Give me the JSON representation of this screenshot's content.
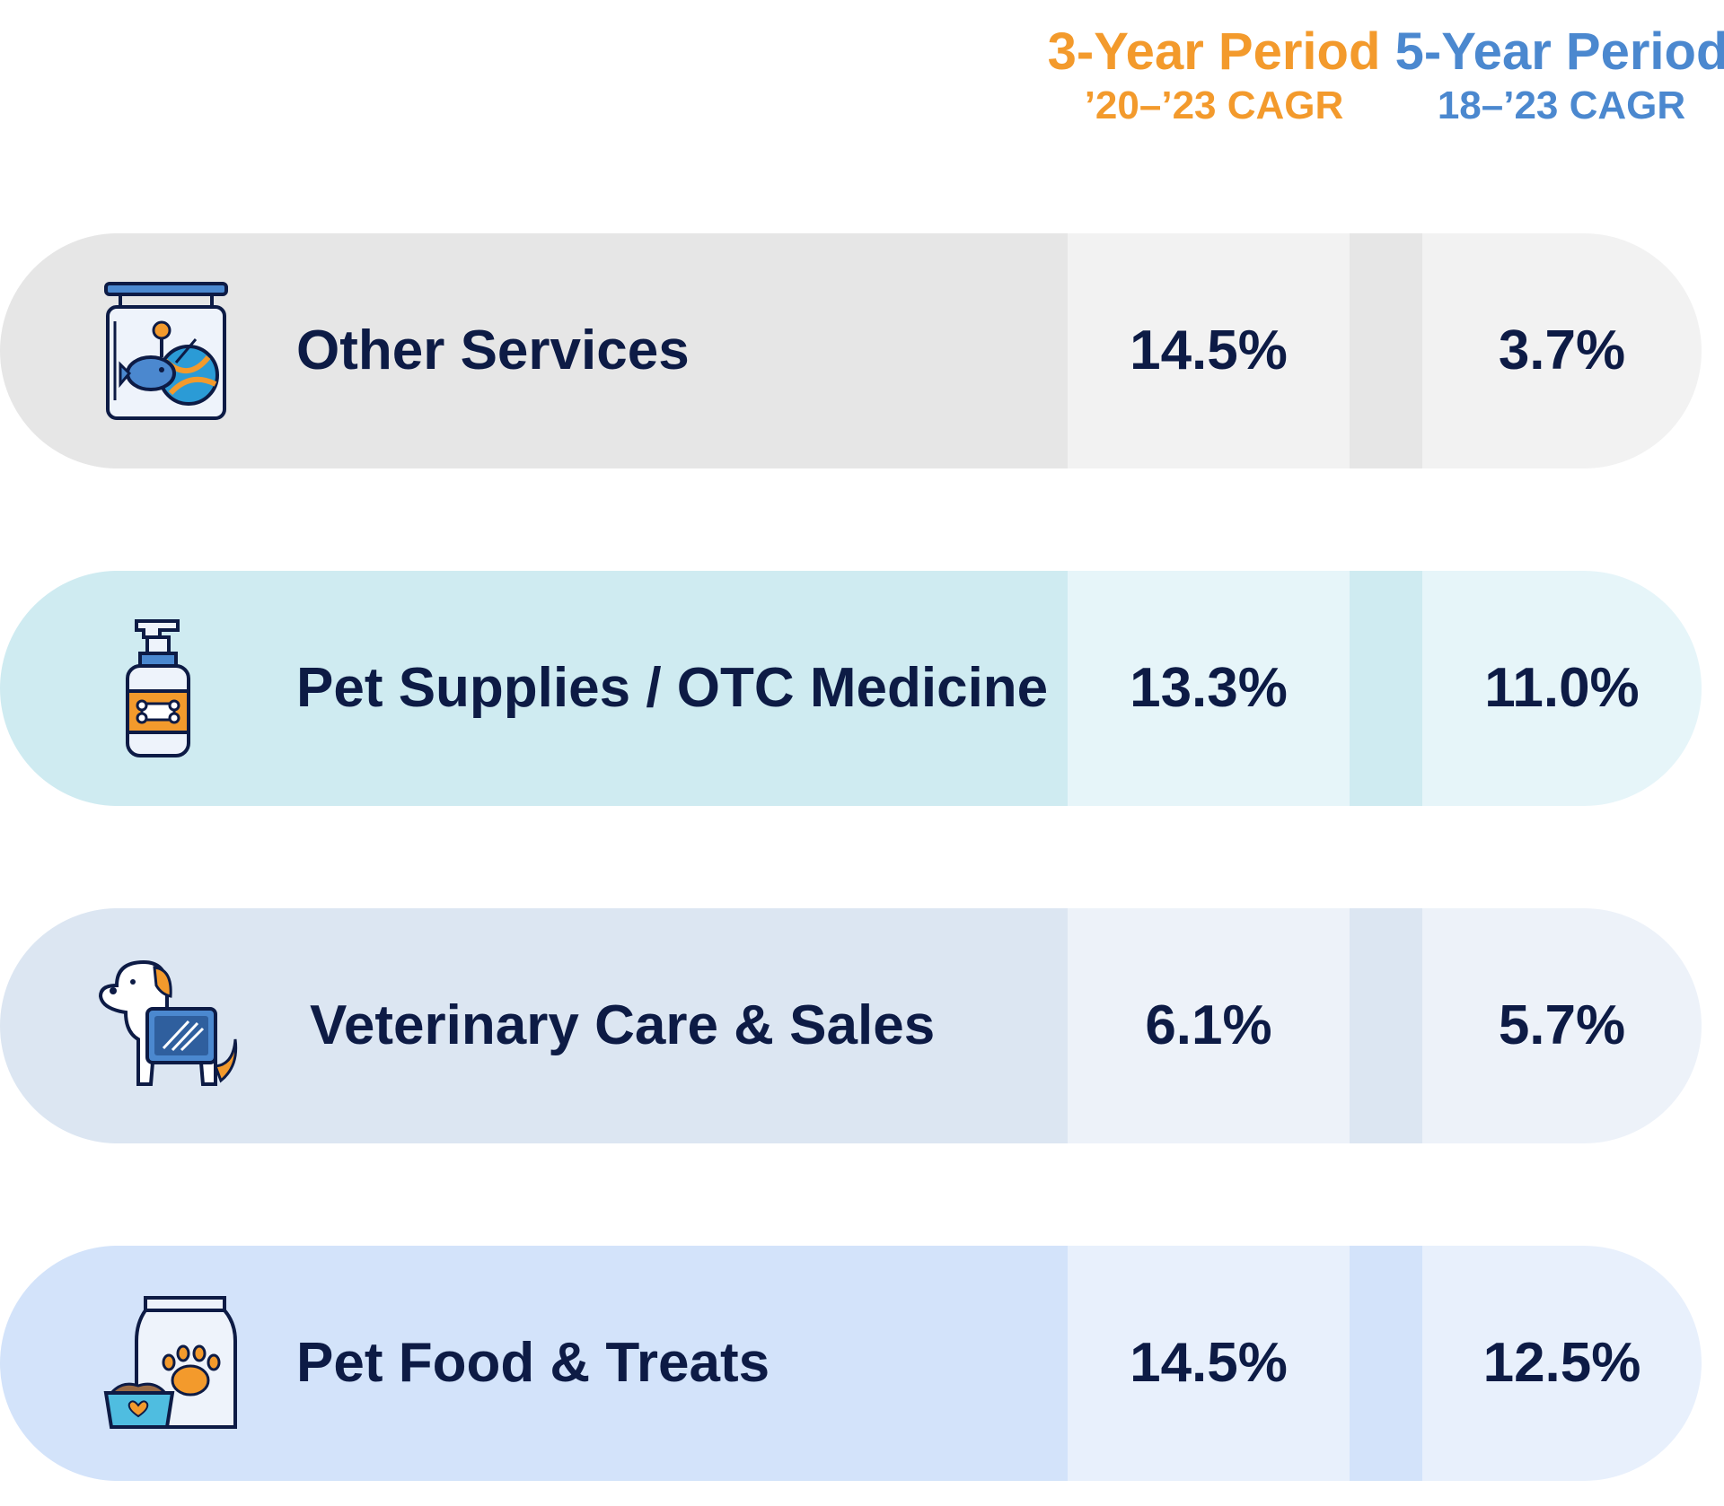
{
  "chart_data": {
    "type": "table",
    "columns": [
      {
        "title": "3-Year Period",
        "subtitle": "’20–’23 CAGR",
        "color": "#f39a2c"
      },
      {
        "title": "5-Year Period",
        "subtitle": "18–’23 CAGR",
        "color": "#4b88cf"
      }
    ],
    "rows": [
      {
        "label": "Other Services",
        "icon": "pet-toy-sign-icon",
        "values": [
          "14.5%",
          "3.7%"
        ]
      },
      {
        "label": "Pet Supplies / OTC Medicine",
        "icon": "shampoo-bottle-icon",
        "values": [
          "13.3%",
          "11.0%"
        ]
      },
      {
        "label": "Veterinary Care & Sales",
        "icon": "dog-xray-icon",
        "values": [
          "6.1%",
          "5.7%"
        ]
      },
      {
        "label": "Pet Food & Treats",
        "icon": "pet-food-bag-icon",
        "values": [
          "14.5%",
          "12.5%"
        ]
      }
    ]
  }
}
